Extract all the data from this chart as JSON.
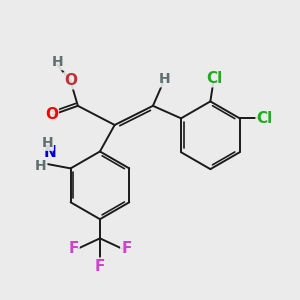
{
  "background_color": "#ebebeb",
  "bond_color": "#1a1a1a",
  "bond_width": 1.4,
  "atom_colors": {
    "O_carbonyl": "#ff0000",
    "O_hydroxyl": "#bb3333",
    "N": "#0000cc",
    "Cl": "#22aa22",
    "F": "#cc44cc",
    "H": "#607070",
    "C": "#1a1a1a"
  },
  "font_size": 11
}
